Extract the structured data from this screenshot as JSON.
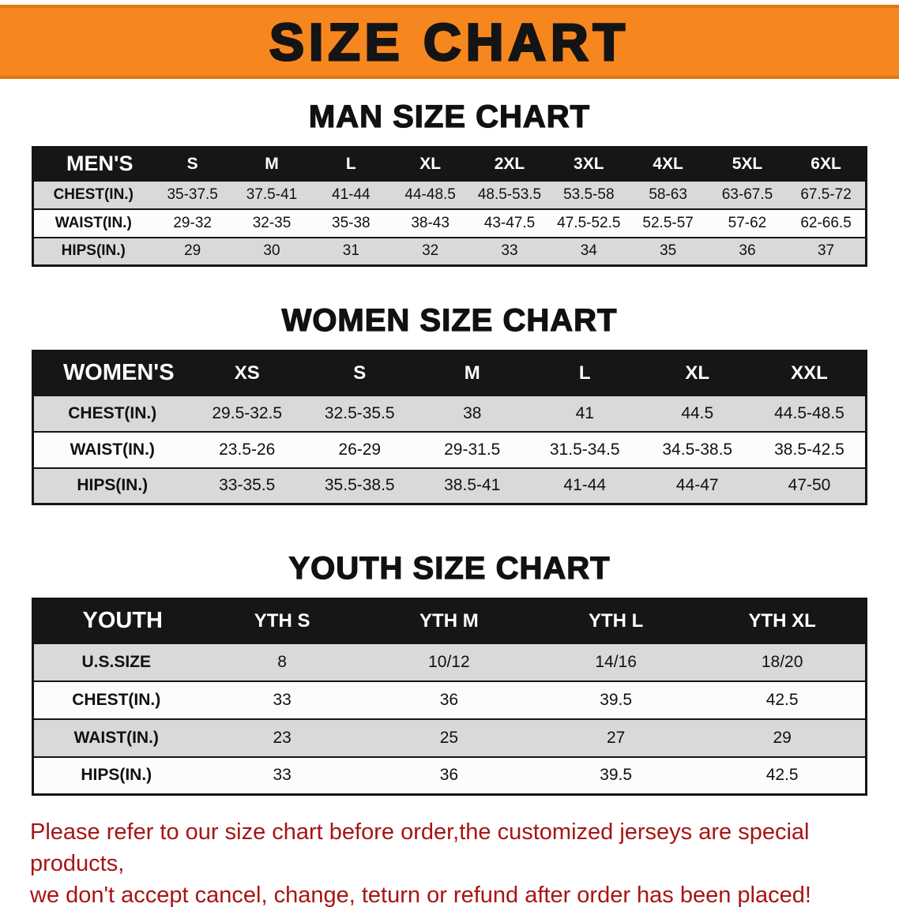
{
  "banner": {
    "title": "SIZE CHART"
  },
  "colors": {
    "banner_orange": "#f6871f",
    "table_header_black": "#161616",
    "row_gray": "#d9d9d9",
    "note_red": "#a81414"
  },
  "chart_data": [
    {
      "type": "table",
      "title": "MAN SIZE CHART",
      "corner_label": "MEN'S",
      "columns": [
        "S",
        "M",
        "L",
        "XL",
        "2XL",
        "3XL",
        "4XL",
        "5XL",
        "6XL"
      ],
      "rows": [
        {
          "label": "CHEST(IN.)",
          "values": [
            "35-37.5",
            "37.5-41",
            "41-44",
            "44-48.5",
            "48.5-53.5",
            "53.5-58",
            "58-63",
            "63-67.5",
            "67.5-72"
          ]
        },
        {
          "label": "WAIST(IN.)",
          "values": [
            "29-32",
            "32-35",
            "35-38",
            "38-43",
            "43-47.5",
            "47.5-52.5",
            "52.5-57",
            "57-62",
            "62-66.5"
          ]
        },
        {
          "label": "HIPS(IN.)",
          "values": [
            "29",
            "30",
            "31",
            "32",
            "33",
            "34",
            "35",
            "36",
            "37"
          ]
        }
      ]
    },
    {
      "type": "table",
      "title": "WOMEN SIZE CHART",
      "corner_label": "WOMEN'S",
      "columns": [
        "XS",
        "S",
        "M",
        "L",
        "XL",
        "XXL"
      ],
      "rows": [
        {
          "label": "CHEST(IN.)",
          "values": [
            "29.5-32.5",
            "32.5-35.5",
            "38",
            "41",
            "44.5",
            "44.5-48.5"
          ]
        },
        {
          "label": "WAIST(IN.)",
          "values": [
            "23.5-26",
            "26-29",
            "29-31.5",
            "31.5-34.5",
            "34.5-38.5",
            "38.5-42.5"
          ]
        },
        {
          "label": "HIPS(IN.)",
          "values": [
            "33-35.5",
            "35.5-38.5",
            "38.5-41",
            "41-44",
            "44-47",
            "47-50"
          ]
        }
      ]
    },
    {
      "type": "table",
      "title": "YOUTH SIZE CHART",
      "corner_label": "YOUTH",
      "columns": [
        "YTH S",
        "YTH M",
        "YTH L",
        "YTH XL"
      ],
      "rows": [
        {
          "label": "U.S.SIZE",
          "values": [
            "8",
            "10/12",
            "14/16",
            "18/20"
          ]
        },
        {
          "label": "CHEST(IN.)",
          "values": [
            "33",
            "36",
            "39.5",
            "42.5"
          ]
        },
        {
          "label": "WAIST(IN.)",
          "values": [
            "23",
            "25",
            "27",
            "29"
          ]
        },
        {
          "label": "HIPS(IN.)",
          "values": [
            "33",
            "36",
            "39.5",
            "42.5"
          ]
        }
      ]
    }
  ],
  "note": {
    "line1": "Please refer to our size chart before order,the customized jerseys are special products,",
    "line2": "we don't accept cancel, change, teturn or refund after order has been placed!"
  }
}
